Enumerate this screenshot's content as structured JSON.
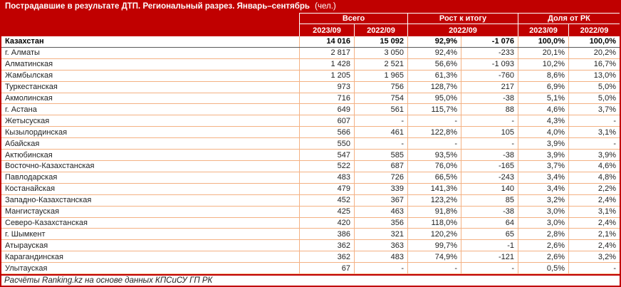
{
  "title": {
    "main": "Пострадавшие в результате ДТП. Региональный разрез. Январь–сентябрь",
    "unit": "(чел.)"
  },
  "chart_data": {
    "type": "table",
    "title": "Пострадавшие в результате ДТП. Региональный разрез. Январь–сентябрь (чел.)",
    "column_groups": [
      {
        "label": "Всего",
        "sub": [
          "2023/09",
          "2022/09"
        ]
      },
      {
        "label": "Рост к итогу",
        "sub": [
          "2022/09"
        ]
      },
      {
        "label": "Доля от РК",
        "sub": [
          "2023/09",
          "2022/09"
        ]
      }
    ],
    "rows": [
      {
        "region": "Казахстан",
        "bold": true,
        "values": [
          "14 016",
          "15 092",
          "92,9%",
          "-1 076",
          "100,0%",
          "100,0%"
        ]
      },
      {
        "region": "г. Алматы",
        "values": [
          "2 817",
          "3 050",
          "92,4%",
          "-233",
          "20,1%",
          "20,2%"
        ]
      },
      {
        "region": "Алматинская",
        "values": [
          "1 428",
          "2 521",
          "56,6%",
          "-1 093",
          "10,2%",
          "16,7%"
        ]
      },
      {
        "region": "Жамбылская",
        "values": [
          "1 205",
          "1 965",
          "61,3%",
          "-760",
          "8,6%",
          "13,0%"
        ]
      },
      {
        "region": "Туркестанская",
        "values": [
          "973",
          "756",
          "128,7%",
          "217",
          "6,9%",
          "5,0%"
        ]
      },
      {
        "region": "Акмолинская",
        "values": [
          "716",
          "754",
          "95,0%",
          "-38",
          "5,1%",
          "5,0%"
        ]
      },
      {
        "region": "г. Астана",
        "values": [
          "649",
          "561",
          "115,7%",
          "88",
          "4,6%",
          "3,7%"
        ]
      },
      {
        "region": "Жетысуская",
        "values": [
          "607",
          "-",
          "-",
          "-",
          "4,3%",
          "-"
        ]
      },
      {
        "region": "Кызылординская",
        "values": [
          "566",
          "461",
          "122,8%",
          "105",
          "4,0%",
          "3,1%"
        ]
      },
      {
        "region": "Абайская",
        "values": [
          "550",
          "-",
          "-",
          "-",
          "3,9%",
          "-"
        ]
      },
      {
        "region": "Актюбинская",
        "values": [
          "547",
          "585",
          "93,5%",
          "-38",
          "3,9%",
          "3,9%"
        ]
      },
      {
        "region": "Восточно-Казахстанская",
        "values": [
          "522",
          "687",
          "76,0%",
          "-165",
          "3,7%",
          "4,6%"
        ]
      },
      {
        "region": "Павлодарская",
        "values": [
          "483",
          "726",
          "66,5%",
          "-243",
          "3,4%",
          "4,8%"
        ]
      },
      {
        "region": "Костанайская",
        "values": [
          "479",
          "339",
          "141,3%",
          "140",
          "3,4%",
          "2,2%"
        ]
      },
      {
        "region": "Западно-Казахстанская",
        "values": [
          "452",
          "367",
          "123,2%",
          "85",
          "3,2%",
          "2,4%"
        ]
      },
      {
        "region": "Мангистауская",
        "values": [
          "425",
          "463",
          "91,8%",
          "-38",
          "3,0%",
          "3,1%"
        ]
      },
      {
        "region": "Северо-Казахстанская",
        "values": [
          "420",
          "356",
          "118,0%",
          "64",
          "3,0%",
          "2,4%"
        ]
      },
      {
        "region": "г. Шымкент",
        "values": [
          "386",
          "321",
          "120,2%",
          "65",
          "2,8%",
          "2,1%"
        ]
      },
      {
        "region": "Атырауская",
        "values": [
          "362",
          "363",
          "99,7%",
          "-1",
          "2,6%",
          "2,4%"
        ]
      },
      {
        "region": "Карагандинская",
        "values": [
          "362",
          "483",
          "74,9%",
          "-121",
          "2,6%",
          "3,2%"
        ]
      },
      {
        "region": "Улытауская",
        "values": [
          "67",
          "-",
          "-",
          "-",
          "0,5%",
          "-"
        ]
      }
    ],
    "source": "Расчёты Ranking.kz на основе данных КПСиСУ ГП РК"
  },
  "colors": {
    "accent_red": "#C00000",
    "border_orange": "#F4B183",
    "header_text": "#FFFFFF",
    "body_text": "#1F1F1F"
  }
}
